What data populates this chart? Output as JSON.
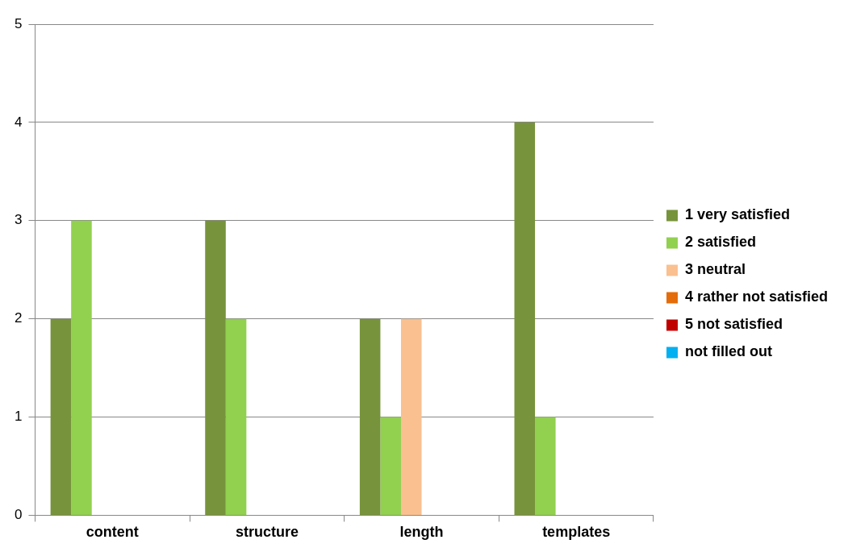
{
  "chart_data": {
    "type": "bar",
    "categories": [
      "content",
      "structure",
      "length",
      "templates"
    ],
    "series": [
      {
        "name": "1 very satisfied",
        "color": "#77933c",
        "values": [
          2,
          3,
          2,
          4
        ]
      },
      {
        "name": "2 satisfied",
        "color": "#92d050",
        "values": [
          3,
          2,
          1,
          1
        ]
      },
      {
        "name": "3 neutral",
        "color": "#fac090",
        "values": [
          0,
          0,
          2,
          0
        ]
      },
      {
        "name": "4 rather not satisfied",
        "color": "#e46c0a",
        "values": [
          0,
          0,
          0,
          0
        ]
      },
      {
        "name": "5 not satisfied",
        "color": "#c00000",
        "values": [
          0,
          0,
          0,
          0
        ]
      },
      {
        "name": "not filled out",
        "color": "#00b0f0",
        "values": [
          0,
          0,
          0,
          0
        ]
      }
    ],
    "ylim": [
      0,
      5
    ],
    "yticks": [
      0,
      1,
      2,
      3,
      4,
      5
    ],
    "grid": "y",
    "legend": "right"
  }
}
